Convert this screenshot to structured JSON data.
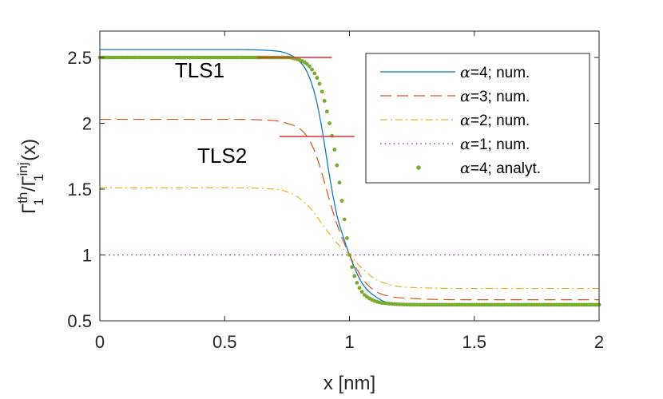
{
  "chart_data": {
    "type": "line",
    "xlabel": "x [nm]",
    "ylabel": {
      "base": "Γ",
      "sup1": "th",
      "sub1": "1",
      "sep": "/Γ",
      "sup2": "inj",
      "sub2": "1",
      "tail": "(x)"
    },
    "xlim": [
      0,
      2
    ],
    "ylim": [
      0.5,
      2.7
    ],
    "xticks": [
      0,
      0.5,
      1,
      1.5,
      2
    ],
    "xtick_labels": [
      "0",
      "0.5",
      "1",
      "1.5",
      "2"
    ],
    "yticks": [
      0.5,
      1,
      1.5,
      2,
      2.5
    ],
    "ytick_labels": [
      "0.5",
      "1",
      "1.5",
      "2",
      "2.5"
    ],
    "grid": false,
    "legend_position": "top-right",
    "series": [
      {
        "name": "α=4; num.",
        "legend_prefix": "α",
        "legend_suffix": "=4; num.",
        "style": "solid",
        "color": "#0072BD",
        "x": [
          0,
          0.5,
          0.7,
          0.75,
          0.8,
          0.83,
          0.86,
          0.88,
          0.9,
          0.92,
          0.95,
          0.98,
          1.0,
          1.03,
          1.06,
          1.1,
          1.15,
          1.25,
          1.5,
          2.0
        ],
        "y": [
          2.56,
          2.56,
          2.55,
          2.53,
          2.47,
          2.39,
          2.23,
          2.06,
          1.84,
          1.6,
          1.3,
          1.11,
          1.0,
          0.86,
          0.76,
          0.69,
          0.64,
          0.625,
          0.622,
          0.622
        ]
      },
      {
        "name": "α=3; num.",
        "legend_prefix": "α",
        "legend_suffix": "=3; num.",
        "style": "dashed",
        "color": "#D95319",
        "x": [
          0,
          0.5,
          0.7,
          0.75,
          0.8,
          0.83,
          0.86,
          0.88,
          0.9,
          0.93,
          0.96,
          1.0,
          1.03,
          1.06,
          1.1,
          1.15,
          1.25,
          1.5,
          2.0
        ],
        "y": [
          2.03,
          2.03,
          2.02,
          2.0,
          1.96,
          1.9,
          1.79,
          1.68,
          1.55,
          1.35,
          1.18,
          1.0,
          0.89,
          0.8,
          0.73,
          0.69,
          0.67,
          0.66,
          0.66
        ]
      },
      {
        "name": "α=2; num.",
        "legend_prefix": "α",
        "legend_suffix": "=2; num.",
        "style": "dashdot",
        "color": "#EDB120",
        "x": [
          0,
          0.5,
          0.7,
          0.75,
          0.8,
          0.85,
          0.9,
          0.95,
          1.0,
          1.05,
          1.1,
          1.15,
          1.2,
          1.3,
          1.5,
          2.0
        ],
        "y": [
          1.51,
          1.51,
          1.5,
          1.48,
          1.43,
          1.34,
          1.21,
          1.09,
          1.0,
          0.9,
          0.82,
          0.78,
          0.76,
          0.75,
          0.745,
          0.745
        ]
      },
      {
        "name": "α=1; num.",
        "legend_prefix": "α",
        "legend_suffix": "=1; num.",
        "style": "dotted",
        "color": "#7E2F8E",
        "x": [
          0,
          2
        ],
        "y": [
          1,
          1
        ]
      },
      {
        "name": "α=4; analyt.",
        "legend_prefix": "α",
        "legend_suffix": "=4; analyt.",
        "style": "markers",
        "color": "#77AC30",
        "x": [
          0,
          0.5,
          0.7,
          0.75,
          0.8,
          0.83,
          0.86,
          0.88,
          0.9,
          0.92,
          0.94,
          0.96,
          0.98,
          1.0,
          1.02,
          1.05,
          1.08,
          1.12,
          1.16,
          1.2,
          1.3,
          1.5,
          2.0
        ],
        "y": [
          2.5,
          2.5,
          2.5,
          2.5,
          2.48,
          2.45,
          2.38,
          2.3,
          2.17,
          2.0,
          1.8,
          1.55,
          1.27,
          1.0,
          0.84,
          0.72,
          0.67,
          0.64,
          0.63,
          0.625,
          0.622,
          0.622,
          0.622
        ]
      }
    ],
    "annotations": [
      {
        "text": "TLS1",
        "x": 0.4,
        "y": 2.35,
        "line_x": [
          0.63,
          0.93
        ],
        "line_y": 2.5,
        "line_color": "#E03030"
      },
      {
        "text": "TLS2",
        "x": 0.49,
        "y": 1.7,
        "line_x": [
          0.72,
          1.02
        ],
        "line_y": 1.9,
        "line_color": "#E03030"
      }
    ]
  }
}
